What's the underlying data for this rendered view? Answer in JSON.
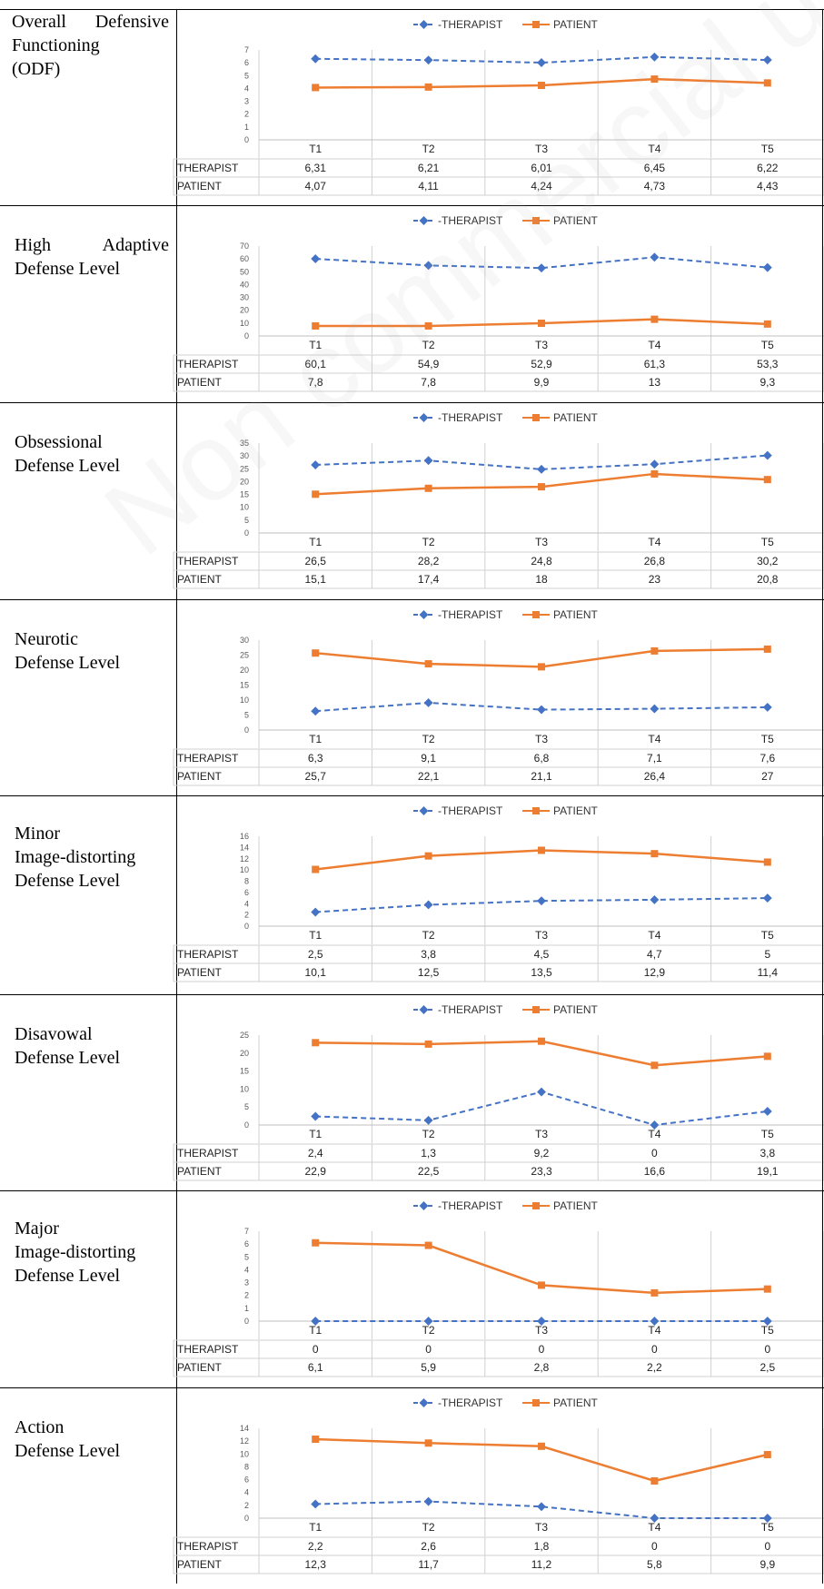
{
  "legend": {
    "therapist": "THERAPIST",
    "patient": "PATIENT"
  },
  "colors": {
    "therapist": "#4472c4",
    "patient": "#ed7d31",
    "grid": "#d0d0d0",
    "axis_text": "#595959"
  },
  "watermark": "Non commercial use only",
  "chart_data": [
    {
      "type": "line",
      "row_label_lines": [
        "Overall Defensive",
        "Functioning",
        "(ODF)"
      ],
      "categories": [
        "T1",
        "T2",
        "T3",
        "T4",
        "T5"
      ],
      "ylim": [
        0,
        7
      ],
      "yticks": [
        "0",
        "1",
        "2",
        "3",
        "4",
        "5",
        "6",
        "7"
      ],
      "series": [
        {
          "name": "THERAPIST",
          "values": [
            6.31,
            6.21,
            6.01,
            6.45,
            6.22
          ],
          "labels": [
            "6,31",
            "6,21",
            "6,01",
            "6,45",
            "6,22"
          ]
        },
        {
          "name": "PATIENT",
          "values": [
            4.07,
            4.11,
            4.24,
            4.73,
            4.43
          ],
          "labels": [
            "4,07",
            "4,11",
            "4,24",
            "4,73",
            "4,43"
          ]
        }
      ]
    },
    {
      "type": "line",
      "row_label_lines": [
        "High Adaptive",
        "Defense Level"
      ],
      "categories": [
        "T1",
        "T2",
        "T3",
        "T4",
        "T5"
      ],
      "ylim": [
        0,
        70
      ],
      "yticks": [
        "0",
        "10",
        "20",
        "30",
        "40",
        "50",
        "60",
        "70"
      ],
      "series": [
        {
          "name": "THERAPIST",
          "values": [
            60.1,
            54.9,
            52.9,
            61.3,
            53.3
          ],
          "labels": [
            "60,1",
            "54,9",
            "52,9",
            "61,3",
            "53,3"
          ]
        },
        {
          "name": "PATIENT",
          "values": [
            7.8,
            7.8,
            9.9,
            13,
            9.3
          ],
          "labels": [
            "7,8",
            "7,8",
            "9,9",
            "13",
            "9,3"
          ]
        }
      ]
    },
    {
      "type": "line",
      "row_label_lines": [
        "Obsessional",
        "Defense Level"
      ],
      "categories": [
        "T1",
        "T2",
        "T3",
        "T4",
        "T5"
      ],
      "ylim": [
        0,
        35
      ],
      "yticks": [
        "0",
        "5",
        "10",
        "15",
        "20",
        "25",
        "30",
        "35"
      ],
      "series": [
        {
          "name": "THERAPIST",
          "values": [
            26.5,
            28.2,
            24.8,
            26.8,
            30.2
          ],
          "labels": [
            "26,5",
            "28,2",
            "24,8",
            "26,8",
            "30,2"
          ]
        },
        {
          "name": "PATIENT",
          "values": [
            15.1,
            17.4,
            18,
            23,
            20.8
          ],
          "labels": [
            "15,1",
            "17,4",
            "18",
            "23",
            "20,8"
          ]
        }
      ]
    },
    {
      "type": "line",
      "row_label_lines": [
        "Neurotic",
        "Defense Level"
      ],
      "categories": [
        "T1",
        "T2",
        "T3",
        "T4",
        "T5"
      ],
      "ylim": [
        0,
        30
      ],
      "yticks": [
        "0",
        "5",
        "10",
        "15",
        "20",
        "25",
        "30"
      ],
      "series": [
        {
          "name": "THERAPIST",
          "values": [
            6.3,
            9.1,
            6.8,
            7.1,
            7.6
          ],
          "labels": [
            "6,3",
            "9,1",
            "6,8",
            "7,1",
            "7,6"
          ]
        },
        {
          "name": "PATIENT",
          "values": [
            25.7,
            22.1,
            21.1,
            26.4,
            27
          ],
          "labels": [
            "25,7",
            "22,1",
            "21,1",
            "26,4",
            "27"
          ]
        }
      ]
    },
    {
      "type": "line",
      "row_label_lines": [
        "Minor",
        "Image-distorting",
        "Defense Level"
      ],
      "categories": [
        "T1",
        "T2",
        "T3",
        "T4",
        "T5"
      ],
      "ylim": [
        0,
        16
      ],
      "yticks": [
        "0",
        "2",
        "4",
        "6",
        "8",
        "10",
        "12",
        "14",
        "16"
      ],
      "series": [
        {
          "name": "THERAPIST",
          "values": [
            2.5,
            3.8,
            4.5,
            4.7,
            5
          ],
          "labels": [
            "2,5",
            "3,8",
            "4,5",
            "4,7",
            "5"
          ]
        },
        {
          "name": "PATIENT",
          "values": [
            10.1,
            12.5,
            13.5,
            12.9,
            11.4
          ],
          "labels": [
            "10,1",
            "12,5",
            "13,5",
            "12,9",
            "11,4"
          ]
        }
      ]
    },
    {
      "type": "line",
      "row_label_lines": [
        "Disavowal",
        "Defense Level"
      ],
      "categories": [
        "T1",
        "T2",
        "T3",
        "T4",
        "T5"
      ],
      "ylim": [
        0,
        25
      ],
      "yticks": [
        "0",
        "5",
        "10",
        "15",
        "20",
        "25"
      ],
      "series": [
        {
          "name": "THERAPIST",
          "values": [
            2.4,
            1.3,
            9.2,
            0,
            3.8
          ],
          "labels": [
            "2,4",
            "1,3",
            "9,2",
            "0",
            "3,8"
          ]
        },
        {
          "name": "PATIENT",
          "values": [
            22.9,
            22.5,
            23.3,
            16.6,
            19.1
          ],
          "labels": [
            "22,9",
            "22,5",
            "23,3",
            "16,6",
            "19,1"
          ]
        }
      ]
    },
    {
      "type": "line",
      "row_label_lines": [
        "Major",
        "Image-distorting",
        "Defense Level"
      ],
      "categories": [
        "T1",
        "T2",
        "T3",
        "T4",
        "T5"
      ],
      "ylim": [
        0,
        7
      ],
      "yticks": [
        "0",
        "1",
        "2",
        "3",
        "4",
        "5",
        "6",
        "7"
      ],
      "series": [
        {
          "name": "THERAPIST",
          "values": [
            0,
            0,
            0,
            0,
            0
          ],
          "labels": [
            "0",
            "0",
            "0",
            "0",
            "0"
          ]
        },
        {
          "name": "PATIENT",
          "values": [
            6.1,
            5.9,
            2.8,
            2.2,
            2.5
          ],
          "labels": [
            "6,1",
            "5,9",
            "2,8",
            "2,2",
            "2,5"
          ]
        }
      ]
    },
    {
      "type": "line",
      "row_label_lines": [
        "Action",
        "Defense Level"
      ],
      "categories": [
        "T1",
        "T2",
        "T3",
        "T4",
        "T5"
      ],
      "ylim": [
        0,
        14
      ],
      "yticks": [
        "0",
        "2",
        "4",
        "6",
        "8",
        "10",
        "12",
        "14"
      ],
      "series": [
        {
          "name": "THERAPIST",
          "values": [
            2.2,
            2.6,
            1.8,
            0,
            0
          ],
          "labels": [
            "2,2",
            "2,6",
            "1,8",
            "0",
            "0"
          ]
        },
        {
          "name": "PATIENT",
          "values": [
            12.3,
            11.7,
            11.2,
            5.8,
            9.9
          ],
          "labels": [
            "12,3",
            "11,7",
            "11,2",
            "5,8",
            "9,9"
          ]
        }
      ]
    }
  ]
}
